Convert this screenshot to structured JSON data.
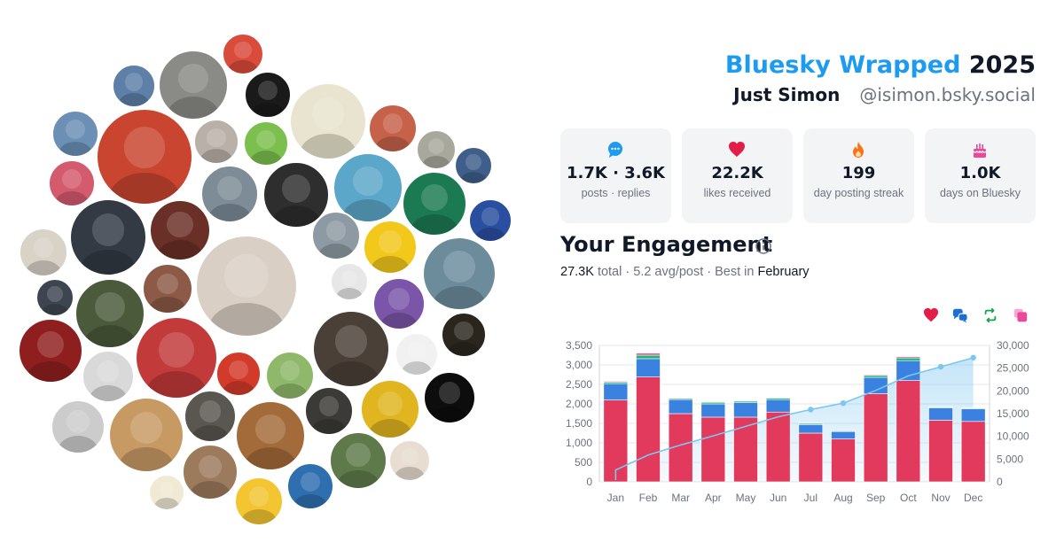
{
  "header": {
    "brand": "Bluesky Wrapped",
    "year": "2025",
    "name": "Just Simon",
    "handle": "@isimon.bsky.social"
  },
  "stats": [
    {
      "icon": "speech-bubble-icon",
      "color": "#1d9bf0",
      "value": "1.7K · 3.6K",
      "label": "posts · replies"
    },
    {
      "icon": "heart-icon",
      "color": "#e11d48",
      "value": "22.2K",
      "label": "likes received"
    },
    {
      "icon": "flame-icon",
      "color": "#f97316",
      "value": "199",
      "label": "day posting streak"
    },
    {
      "icon": "birthday-cake-icon",
      "color": "#ec4899",
      "value": "1.0K",
      "label": "days on Bluesky"
    }
  ],
  "engagement": {
    "title": "Your Engagement",
    "total": "27.3K",
    "total_label": "total",
    "avg": "5.2 avg/post",
    "best_prefix": "Best in",
    "best_month": "February",
    "legend_icons": [
      {
        "icon": "heart-icon",
        "color": "#e11d48"
      },
      {
        "icon": "reply-bubbles-icon",
        "color": "#1d6fd8"
      },
      {
        "icon": "repost-icon",
        "color": "#16a34a"
      },
      {
        "icon": "quote-icon",
        "color": "#ec4899"
      }
    ]
  },
  "colors": {
    "likes": "#e23a5d",
    "replies": "#3b82e0",
    "reposts": "#22b573",
    "quotes": "#ec4899",
    "cumulative": "#7cc6ef"
  },
  "chart_data": {
    "type": "bar",
    "stacked": true,
    "categories": [
      "Jan",
      "Feb",
      "Mar",
      "Apr",
      "May",
      "Jun",
      "Jul",
      "Aug",
      "Sep",
      "Oct",
      "Nov",
      "Dec"
    ],
    "series": [
      {
        "values": [
          2100,
          2690,
          1750,
          1660,
          1660,
          1790,
          1250,
          1100,
          2260,
          2600,
          1580,
          1550
        ]
      },
      {
        "values": [
          420,
          470,
          360,
          340,
          370,
          320,
          220,
          190,
          420,
          510,
          320,
          320
        ]
      },
      {
        "values": [
          40,
          90,
          30,
          40,
          40,
          40,
          30,
          20,
          50,
          70,
          20,
          20
        ]
      },
      {
        "values": [
          20,
          50,
          10,
          10,
          10,
          10,
          10,
          10,
          20,
          30,
          10,
          10
        ]
      }
    ],
    "cumulative": [
      2600,
      5900,
      8100,
      10100,
      12200,
      14300,
      15900,
      17300,
      20100,
      23300,
      25300,
      27300
    ],
    "ylim": [
      0,
      3500
    ],
    "yticks": [
      "3,500",
      "3,000",
      "2,500",
      "2,000",
      "1,500",
      "1,000",
      "500",
      "0"
    ],
    "y2lim": [
      0,
      30000
    ],
    "y2ticks": [
      "30,000",
      "25,000",
      "20,000",
      "15,000",
      "10,000",
      "5,000",
      "0"
    ],
    "grid": true
  },
  "avatars": [
    {
      "name": "avatar-cartoon-red-cap",
      "color": "#d94b3a"
    },
    {
      "name": "avatar-owl-sketch",
      "color": "#8a8a86"
    },
    {
      "name": "avatar-man-sunglasses",
      "color": "#5d7fa8"
    },
    {
      "name": "avatar-hooded-figure",
      "color": "#1a1a1a"
    },
    {
      "name": "avatar-beaver-vyber",
      "color": "#e9e4cf"
    },
    {
      "name": "avatar-red-portrait",
      "color": "#c6624a"
    },
    {
      "name": "avatar-man-suit",
      "color": "#6b8fb5"
    },
    {
      "name": "avatar-beavis-cartoon",
      "color": "#c9452f"
    },
    {
      "name": "avatar-man-glasses",
      "color": "#b9b1a8"
    },
    {
      "name": "avatar-pepe-meme",
      "color": "#7cbf4f"
    },
    {
      "name": "avatar-foggy-field",
      "color": "#a8a89c"
    },
    {
      "name": "avatar-man-blue-shirt",
      "color": "#3f5f8a"
    },
    {
      "name": "avatar-group-photo",
      "color": "#d45a6e"
    },
    {
      "name": "avatar-i-help-ukrainian-army",
      "color": "#2e2e2e"
    },
    {
      "name": "avatar-bojack-horse",
      "color": "#5ba7c9"
    },
    {
      "name": "avatar-non-stop",
      "color": "#1c7a52"
    },
    {
      "name": "avatar-gaming-logo",
      "color": "#2a4fa0"
    },
    {
      "name": "avatar-man-bald",
      "color": "#7d8c96"
    },
    {
      "name": "avatar-singer-mic",
      "color": "#333a44"
    },
    {
      "name": "avatar-dark-figure",
      "color": "#6a2f26"
    },
    {
      "name": "avatar-santa-hat-man",
      "color": "#d9cfc4"
    },
    {
      "name": "avatar-cat-top-hat",
      "color": "#8e9aa3"
    },
    {
      "name": "avatar-vader-helmet",
      "color": "#f2c81a"
    },
    {
      "name": "avatar-arctic-fox",
      "color": "#d8d2c7"
    },
    {
      "name": "avatar-bearded-portrait",
      "color": "#6c8c9c"
    },
    {
      "name": "avatar-man-dark",
      "color": "#3d4650"
    },
    {
      "name": "avatar-devil-man",
      "color": "#4a5a3a"
    },
    {
      "name": "avatar-bearded-man",
      "color": "#8c5a46"
    },
    {
      "name": "avatar-badger",
      "color": "#e7e7e7"
    },
    {
      "name": "avatar-wizard-cartoon",
      "color": "#7b55a8"
    },
    {
      "name": "avatar-red-glow-man",
      "color": "#8f1f1f"
    },
    {
      "name": "avatar-no-poster",
      "color": "#c23a3a"
    },
    {
      "name": "avatar-skeleton-cat",
      "color": "#d9d9d9"
    },
    {
      "name": "avatar-red-abstract",
      "color": "#d23b2a"
    },
    {
      "name": "avatar-rubber-duck",
      "color": "#8fb86a"
    },
    {
      "name": "avatar-smiling-face",
      "color": "#4a4038"
    },
    {
      "name": "avatar-sunglasses-sketch",
      "color": "#f1f1f1"
    },
    {
      "name": "avatar-dark-orb",
      "color": "#2a261e"
    },
    {
      "name": "avatar-pumpkin-sketch",
      "color": "#cccccc"
    },
    {
      "name": "avatar-woman-glasses",
      "color": "#c79a64"
    },
    {
      "name": "avatar-assassin",
      "color": "#5a5650"
    },
    {
      "name": "avatar-cat-drawing",
      "color": "#a46b3a"
    },
    {
      "name": "avatar-man-tie",
      "color": "#3b3a36"
    },
    {
      "name": "avatar-tattoo-man",
      "color": "#e0b51f"
    },
    {
      "name": "avatar-united24",
      "color": "#0d0d0d"
    },
    {
      "name": "avatar-forest-man",
      "color": "#5f7a4a"
    },
    {
      "name": "avatar-kid-cat",
      "color": "#e8ddd0"
    },
    {
      "name": "avatar-duck-cartoon",
      "color": "#f0ead5"
    },
    {
      "name": "avatar-nathan-drake",
      "color": "#9c7a5c"
    },
    {
      "name": "avatar-cartoon-man-yellow",
      "color": "#f2c531"
    },
    {
      "name": "avatar-blue-smile",
      "color": "#2f6fb0"
    }
  ]
}
